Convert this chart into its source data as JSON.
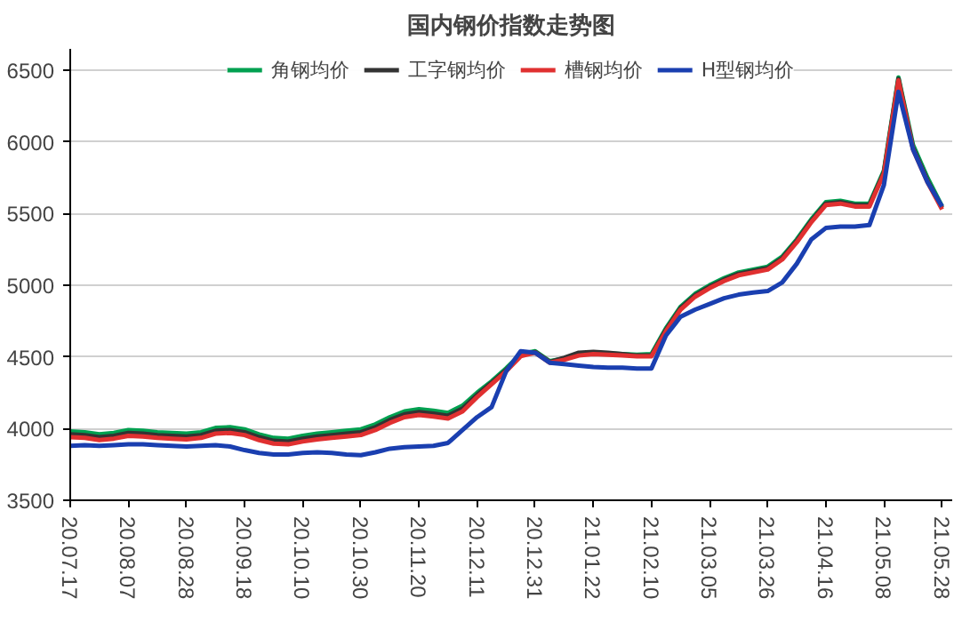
{
  "chart_data": {
    "type": "line",
    "title": "国内钢价指数走势图",
    "categories": [
      "20.07.17",
      null,
      null,
      null,
      "20.08.07",
      null,
      null,
      null,
      "20.08.28",
      null,
      null,
      null,
      "20.09.18",
      null,
      null,
      null,
      "20.10.10",
      null,
      null,
      null,
      "20.10.30",
      null,
      null,
      null,
      "20.11.20",
      null,
      null,
      null,
      "20.12.11",
      null,
      null,
      null,
      "20.12.31",
      null,
      null,
      null,
      "21.01.22",
      null,
      null,
      null,
      "21.02.10",
      null,
      null,
      null,
      "21.03.05",
      null,
      null,
      null,
      "21.03.26",
      null,
      null,
      null,
      "21.04.16",
      null,
      null,
      null,
      "21.05.08",
      null,
      null,
      null,
      "21.05.28"
    ],
    "series": [
      {
        "name": "角钢均价",
        "color": "#00a050",
        "values": [
          3980,
          3975,
          3960,
          3970,
          3990,
          3985,
          3975,
          3970,
          3965,
          3975,
          4005,
          4010,
          3995,
          3960,
          3935,
          3930,
          3950,
          3965,
          3975,
          3985,
          3995,
          4030,
          4080,
          4120,
          4135,
          4125,
          4110,
          4160,
          4250,
          4330,
          4420,
          4520,
          4540,
          4470,
          4490,
          4520,
          4530,
          4525,
          4520,
          4515,
          4520,
          4700,
          4850,
          4940,
          5000,
          5050,
          5090,
          5110,
          5130,
          5200,
          5320,
          5460,
          5580,
          5590,
          5570,
          5570,
          5800,
          6450,
          5980,
          5750,
          5550
        ]
      },
      {
        "name": "工字钢均价",
        "color": "#333333",
        "values": [
          3960,
          3955,
          3940,
          3950,
          3970,
          3965,
          3955,
          3950,
          3945,
          3955,
          3985,
          3990,
          3975,
          3940,
          3915,
          3910,
          3930,
          3945,
          3955,
          3965,
          3975,
          4010,
          4060,
          4100,
          4115,
          4105,
          4090,
          4140,
          4235,
          4320,
          4410,
          4510,
          4535,
          4465,
          4495,
          4530,
          4535,
          4530,
          4520,
          4510,
          4510,
          4690,
          4840,
          4930,
          4990,
          5040,
          5080,
          5100,
          5120,
          5190,
          5310,
          5450,
          5570,
          5580,
          5560,
          5560,
          5790,
          6440,
          5960,
          5730,
          5540
        ]
      },
      {
        "name": "槽钢均价",
        "color": "#e03030",
        "values": [
          3940,
          3935,
          3920,
          3930,
          3950,
          3945,
          3935,
          3930,
          3925,
          3935,
          3965,
          3970,
          3955,
          3920,
          3895,
          3890,
          3910,
          3925,
          3935,
          3945,
          3955,
          3990,
          4040,
          4080,
          4095,
          4085,
          4070,
          4120,
          4220,
          4310,
          4400,
          4505,
          4530,
          4460,
          4480,
          4510,
          4520,
          4515,
          4510,
          4505,
          4505,
          4680,
          4830,
          4920,
          4980,
          5030,
          5070,
          5090,
          5110,
          5180,
          5300,
          5440,
          5560,
          5570,
          5550,
          5550,
          5780,
          6430,
          5950,
          5720,
          5530
        ]
      },
      {
        "name": "H型钢均价",
        "color": "#1a3fb0",
        "values": [
          3880,
          3885,
          3880,
          3885,
          3890,
          3890,
          3885,
          3880,
          3875,
          3880,
          3885,
          3875,
          3850,
          3830,
          3820,
          3820,
          3830,
          3835,
          3830,
          3820,
          3815,
          3835,
          3860,
          3870,
          3875,
          3880,
          3900,
          3990,
          4080,
          4150,
          4400,
          4540,
          4530,
          4460,
          4450,
          4440,
          4430,
          4425,
          4425,
          4420,
          4420,
          4650,
          4780,
          4830,
          4870,
          4910,
          4935,
          4950,
          4960,
          5020,
          5150,
          5320,
          5400,
          5410,
          5410,
          5420,
          5700,
          6350,
          5950,
          5720,
          5550
        ]
      }
    ],
    "ylim": [
      3500,
      6650
    ],
    "yticks": [
      3500,
      4000,
      4500,
      5000,
      5500,
      6000,
      6500
    ],
    "grid": "y",
    "legend": "top"
  }
}
